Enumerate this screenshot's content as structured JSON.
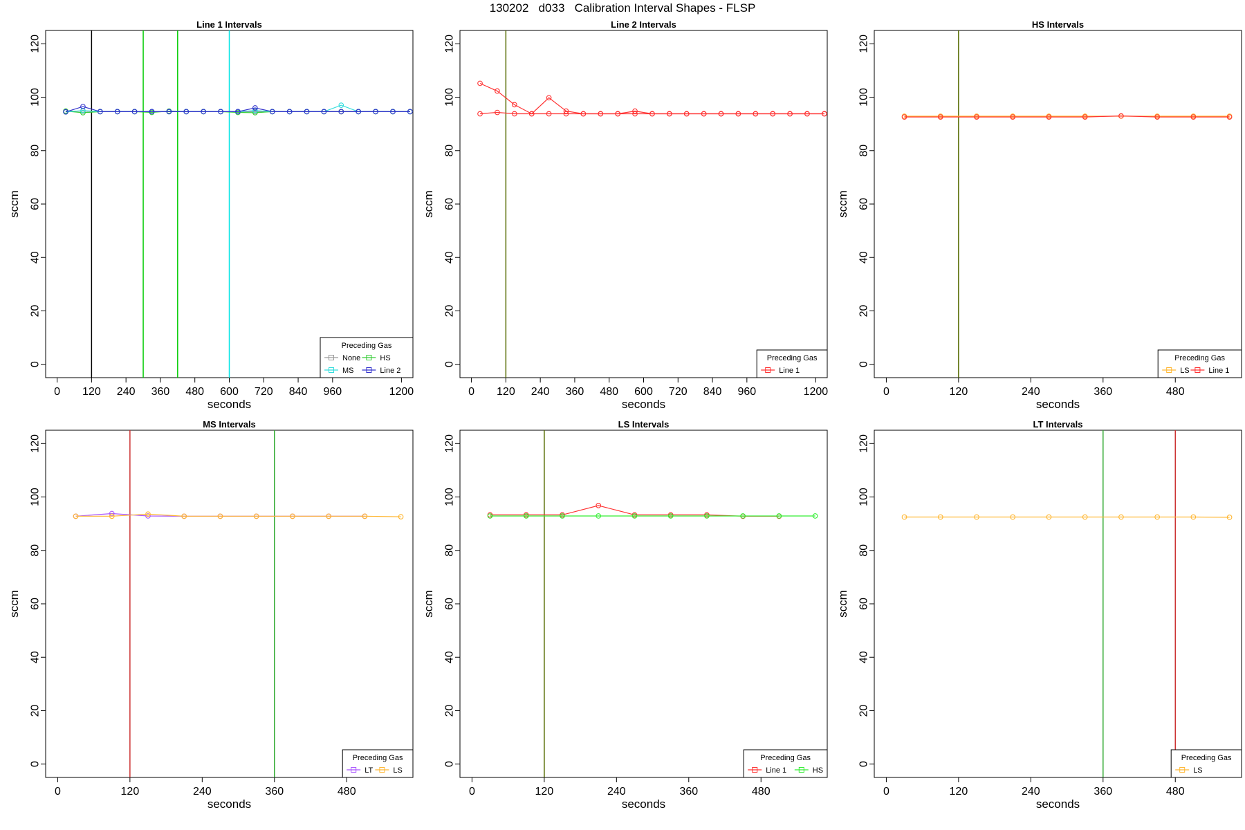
{
  "page": {
    "title": "130202   d033   Calibration Interval Shapes - FLSP"
  },
  "chart_data": [
    {
      "type": "line",
      "title": "Line 1 Intervals",
      "xlabel": "seconds",
      "ylabel": "sccm",
      "xlim": [
        -40,
        1240
      ],
      "ylim": [
        -5,
        125
      ],
      "xticks": [
        0,
        120,
        240,
        360,
        480,
        600,
        720,
        840,
        960,
        1200
      ],
      "yticks": [
        0,
        20,
        40,
        60,
        80,
        100,
        120
      ],
      "legend": {
        "title": "Preceding Gas",
        "position": "bottom-right",
        "columns": 2
      },
      "vlines": [
        {
          "x": 120,
          "color": "#000000"
        },
        {
          "x": 300,
          "color": "#00cc00"
        },
        {
          "x": 420,
          "color": "#00cc00"
        },
        {
          "x": 600,
          "color": "#00e5e5"
        }
      ],
      "series": [
        {
          "name": "None",
          "color": "#999999",
          "x": [
            30,
            90,
            150,
            210,
            270,
            330,
            390,
            450,
            510,
            570,
            630,
            690,
            750,
            810,
            870,
            930,
            990,
            1050,
            1110,
            1170,
            1230
          ],
          "y": [
            94.8,
            94.8,
            94.6,
            94.6,
            94.6,
            94.6,
            94.6,
            94.6,
            94.6,
            94.6,
            94.6,
            94.6,
            94.6,
            94.6,
            94.6,
            94.6,
            94.6,
            94.6,
            94.6,
            94.6,
            94.6
          ]
        },
        {
          "name": "HS",
          "color": "#33cc33",
          "x": [
            30,
            90,
            150,
            210,
            270,
            330,
            390,
            450,
            510,
            570,
            630,
            690,
            750,
            810,
            870,
            930,
            990,
            1050,
            1110,
            1170,
            1230
          ],
          "y": [
            94.8,
            94.2,
            94.6,
            94.6,
            94.6,
            94.3,
            94.8,
            94.6,
            94.6,
            94.6,
            94.3,
            94.2,
            94.6,
            94.6,
            94.6,
            94.6,
            94.6,
            94.6,
            94.6,
            94.6,
            94.6
          ]
        },
        {
          "name": "MS",
          "color": "#33dddd",
          "x": [
            30,
            90,
            150,
            210,
            270,
            330,
            390,
            450,
            510,
            570,
            630,
            690,
            750,
            810,
            870,
            930,
            990,
            1050,
            1110,
            1170,
            1230
          ],
          "y": [
            94.5,
            95.0,
            94.6,
            94.6,
            94.6,
            94.6,
            94.6,
            94.6,
            94.6,
            94.6,
            94.6,
            95.0,
            94.6,
            94.6,
            94.6,
            94.6,
            97.0,
            94.6,
            94.6,
            94.6,
            94.6
          ]
        },
        {
          "name": "Line 2",
          "color": "#3333cc",
          "x": [
            30,
            90,
            150,
            210,
            270,
            330,
            390,
            450,
            510,
            570,
            630,
            690,
            750,
            810,
            870,
            930,
            990,
            1050,
            1110,
            1170,
            1230
          ],
          "y": [
            94.5,
            96.5,
            94.6,
            94.6,
            94.6,
            94.6,
            94.6,
            94.6,
            94.6,
            94.6,
            94.6,
            96.0,
            94.6,
            94.6,
            94.6,
            94.6,
            94.6,
            94.6,
            94.6,
            94.6,
            94.6
          ]
        }
      ]
    },
    {
      "type": "line",
      "title": "Line 2 Intervals",
      "xlabel": "seconds",
      "ylabel": "sccm",
      "xlim": [
        -40,
        1240
      ],
      "ylim": [
        -5,
        125
      ],
      "xticks": [
        0,
        120,
        240,
        360,
        480,
        600,
        720,
        840,
        960,
        1200
      ],
      "yticks": [
        0,
        20,
        40,
        60,
        80,
        100,
        120
      ],
      "legend": {
        "title": "Preceding Gas",
        "position": "bottom-right",
        "columns": 1
      },
      "vlines": [
        {
          "x": 120,
          "color": "#556b00"
        }
      ],
      "series": [
        {
          "name": "Line 1",
          "color": "#ff3333",
          "x": [
            30,
            90,
            150,
            210,
            270,
            330,
            390,
            450,
            510,
            570,
            630,
            690,
            750,
            810,
            870,
            930,
            990,
            1050,
            1110,
            1170,
            1230
          ],
          "y": [
            105.2,
            102.3,
            97.2,
            93.8,
            99.8,
            94.8,
            93.8,
            93.8,
            93.8,
            94.8,
            93.8,
            93.8,
            93.8,
            93.8,
            93.8,
            93.8,
            93.8,
            93.8,
            93.8,
            93.8,
            93.8
          ]
        },
        {
          "name": "",
          "color": "#ff3333",
          "x": [
            30,
            90,
            150,
            210,
            270,
            330,
            390,
            450,
            510,
            570,
            630,
            690,
            750,
            810,
            870,
            930,
            990,
            1050,
            1110,
            1170,
            1230
          ],
          "y": [
            93.8,
            94.3,
            93.8,
            93.8,
            93.8,
            93.8,
            93.8,
            93.8,
            93.8,
            93.8,
            93.8,
            93.8,
            93.8,
            93.8,
            93.8,
            93.8,
            93.8,
            93.8,
            93.8,
            93.8,
            93.8
          ]
        }
      ]
    },
    {
      "type": "line",
      "title": "HS Intervals",
      "xlabel": "seconds",
      "ylabel": "sccm",
      "xlim": [
        -20,
        590
      ],
      "ylim": [
        -5,
        125
      ],
      "xticks": [
        0,
        120,
        240,
        360,
        480
      ],
      "yticks": [
        0,
        20,
        40,
        60,
        80,
        100,
        120
      ],
      "legend": {
        "title": "Preceding Gas",
        "position": "bottom-right",
        "columns": 2
      },
      "vlines": [
        {
          "x": 120,
          "color": "#556b00"
        }
      ],
      "series": [
        {
          "name": "LS",
          "color": "#ffb733",
          "x": [
            30,
            90,
            150,
            210,
            270,
            330,
            390,
            450,
            510,
            570
          ],
          "y": [
            92.9,
            92.9,
            92.9,
            92.9,
            92.9,
            92.9,
            92.9,
            92.9,
            92.9,
            92.9
          ]
        },
        {
          "name": "Line 1",
          "color": "#ff3333",
          "x": [
            30,
            90,
            150,
            210,
            270,
            330,
            390,
            450,
            510,
            570
          ],
          "y": [
            92.6,
            92.6,
            92.6,
            92.6,
            92.6,
            92.6,
            93.0,
            92.6,
            92.6,
            92.6
          ]
        }
      ]
    },
    {
      "type": "line",
      "title": "MS Intervals",
      "xlabel": "seconds",
      "ylabel": "sccm",
      "xlim": [
        -20,
        590
      ],
      "ylim": [
        -5,
        125
      ],
      "xticks": [
        0,
        120,
        240,
        360,
        480
      ],
      "yticks": [
        0,
        20,
        40,
        60,
        80,
        100,
        120
      ],
      "legend": {
        "title": "Preceding Gas",
        "position": "bottom-right",
        "columns": 2
      },
      "vlines": [
        {
          "x": 120,
          "color": "#cc3333"
        },
        {
          "x": 360,
          "color": "#33aa33"
        }
      ],
      "series": [
        {
          "name": "LT",
          "color": "#aa55ff",
          "x": [
            30,
            90,
            150,
            210,
            270,
            330,
            390,
            450,
            510
          ],
          "y": [
            92.8,
            93.8,
            92.9,
            92.8,
            92.8,
            92.8,
            92.8,
            92.8,
            92.8
          ]
        },
        {
          "name": "LS",
          "color": "#ffb733",
          "x": [
            30,
            90,
            150,
            210,
            270,
            330,
            390,
            450,
            510,
            570
          ],
          "y": [
            92.8,
            92.8,
            93.6,
            92.8,
            92.8,
            92.8,
            92.8,
            92.8,
            92.8,
            92.6
          ]
        }
      ]
    },
    {
      "type": "line",
      "title": "LS Intervals",
      "xlabel": "seconds",
      "ylabel": "sccm",
      "xlim": [
        -20,
        590
      ],
      "ylim": [
        -5,
        125
      ],
      "xticks": [
        0,
        120,
        240,
        360,
        480
      ],
      "yticks": [
        0,
        20,
        40,
        60,
        80,
        100,
        120
      ],
      "legend": {
        "title": "Preceding Gas",
        "position": "bottom-right",
        "columns": 2
      },
      "vlines": [
        {
          "x": 120,
          "color": "#556b00"
        }
      ],
      "series": [
        {
          "name": "Line 1",
          "color": "#ff3333",
          "x": [
            30,
            90,
            150,
            210,
            270,
            330,
            390,
            450,
            510
          ],
          "y": [
            93.3,
            93.3,
            93.3,
            96.8,
            93.3,
            93.3,
            93.3,
            92.8,
            92.8
          ]
        },
        {
          "name": "HS",
          "color": "#33ee33",
          "x": [
            30,
            90,
            150,
            210,
            270,
            330,
            390,
            450,
            510,
            570
          ],
          "y": [
            92.9,
            92.9,
            92.9,
            92.9,
            92.9,
            92.9,
            92.9,
            92.9,
            92.9,
            92.9
          ]
        }
      ]
    },
    {
      "type": "line",
      "title": "LT Intervals",
      "xlabel": "seconds",
      "ylabel": "sccm",
      "xlim": [
        -20,
        590
      ],
      "ylim": [
        -5,
        125
      ],
      "xticks": [
        0,
        120,
        240,
        360,
        480
      ],
      "yticks": [
        0,
        20,
        40,
        60,
        80,
        100,
        120
      ],
      "legend": {
        "title": "Preceding Gas",
        "position": "bottom-right",
        "columns": 1
      },
      "vlines": [
        {
          "x": 360,
          "color": "#33aa33"
        },
        {
          "x": 480,
          "color": "#cc3333"
        }
      ],
      "series": [
        {
          "name": "LS",
          "color": "#ffb733",
          "x": [
            30,
            90,
            150,
            210,
            270,
            330,
            390,
            450,
            510,
            570
          ],
          "y": [
            92.5,
            92.5,
            92.5,
            92.5,
            92.5,
            92.5,
            92.5,
            92.5,
            92.5,
            92.4
          ]
        }
      ]
    }
  ]
}
